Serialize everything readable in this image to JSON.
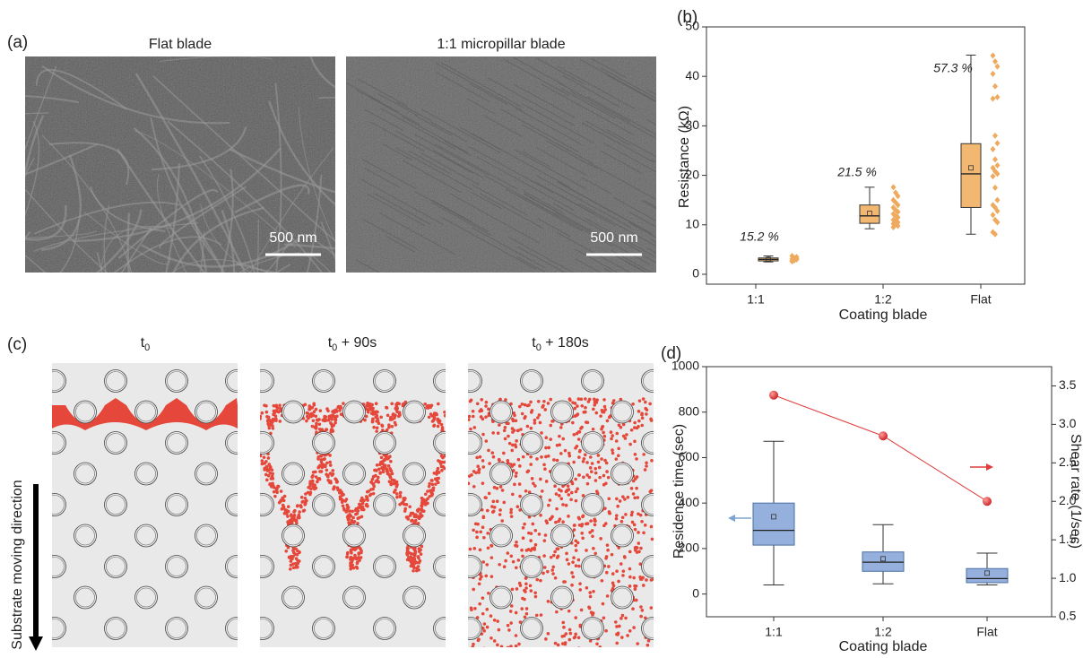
{
  "panel_a": {
    "label": "(a)",
    "images": [
      {
        "title": "Flat blade",
        "scale_bar": "500 nm"
      },
      {
        "title": "1:1 micropillar blade",
        "scale_bar": "500 nm"
      }
    ]
  },
  "panel_c": {
    "label": "(c)",
    "side_label": "Substrate moving direction",
    "frames": [
      {
        "base": "t",
        "subscript": "0"
      },
      {
        "base": "t",
        "subscript": "0",
        "suffix": " + 90s"
      },
      {
        "base": "t",
        "subscript": "0",
        "suffix": " + 180s"
      }
    ]
  },
  "chart_data": [
    {
      "type": "box",
      "label": "(b)",
      "xlabel": "Coating blade",
      "ylabel": "Resistance (kΩ)",
      "categories": [
        "1:1",
        "1:2",
        "Flat"
      ],
      "color": "#f2b872",
      "point_color": "#eeaa5e",
      "ylim": [
        -2,
        50
      ],
      "yticks": [
        0,
        10,
        20,
        30,
        40,
        50
      ],
      "boxes": [
        {
          "min": 2.5,
          "q1": 2.7,
          "median": 3.0,
          "q3": 3.3,
          "max": 3.7,
          "mean": 3.0
        },
        {
          "min": 9.2,
          "q1": 10.3,
          "median": 11.8,
          "q3": 14.0,
          "max": 17.6,
          "mean": 12.3
        },
        {
          "min": 8.1,
          "q1": 13.5,
          "median": 20.3,
          "q3": 26.4,
          "max": 44.3,
          "mean": 21.5
        }
      ],
      "points": [
        [
          2.6,
          2.8,
          3.0,
          3.1,
          3.3,
          3.5,
          3.7,
          2.9,
          3.2,
          2.7
        ],
        [
          17.6,
          16.5,
          15.8,
          15.0,
          14.5,
          14.0,
          13.5,
          13.0,
          12.6,
          12.2,
          11.8,
          11.5,
          11.0,
          10.8,
          10.5,
          10.2,
          10.0,
          9.8,
          9.5
        ],
        [
          44.2,
          43.0,
          42.0,
          40.5,
          38.0,
          35.8,
          35.5,
          28.0,
          26.5,
          25.3,
          23.2,
          22.0,
          21.5,
          20.8,
          20.3,
          19.8,
          17.5,
          15.0,
          14.0,
          13.5,
          12.8,
          12.0,
          11.0,
          10.5,
          8.5,
          8.1
        ]
      ],
      "annotations": [
        "15.2 %",
        "21.5 %",
        "57.3 %"
      ]
    },
    {
      "type": "box_line",
      "label": "(d)",
      "xlabel": "Coating blade",
      "ylabel": "Residence time (sec)",
      "y2label": "Shear rate (1/sec)",
      "categories": [
        "1:1",
        "1:2",
        "Flat"
      ],
      "color": "#95b0dc",
      "edge_color": "#4a6fa5",
      "ylim": [
        -100,
        1000
      ],
      "yticks": [
        0,
        200,
        400,
        600,
        800,
        1000
      ],
      "y2lim": [
        0.5,
        3.75
      ],
      "y2ticks": [
        0.5,
        {
          "value": 1,
          "label": "1.0"
        },
        1.5,
        {
          "value": 2,
          "label": "2.0"
        },
        2.5,
        {
          "value": 3,
          "label": "3.0"
        },
        3.5
      ],
      "boxes": [
        {
          "min": 40,
          "q1": 215,
          "median": 280,
          "q3": 400,
          "max": 672,
          "mean": 340
        },
        {
          "min": 45,
          "q1": 100,
          "median": 140,
          "q3": 185,
          "max": 305,
          "mean": 155
        },
        {
          "min": 40,
          "q1": 50,
          "median": 68,
          "q3": 112,
          "max": 180,
          "mean": 92
        }
      ],
      "line": {
        "axis": "y2",
        "color": "#e03c3c",
        "values": [
          3.38,
          2.85,
          2.0
        ]
      }
    }
  ]
}
